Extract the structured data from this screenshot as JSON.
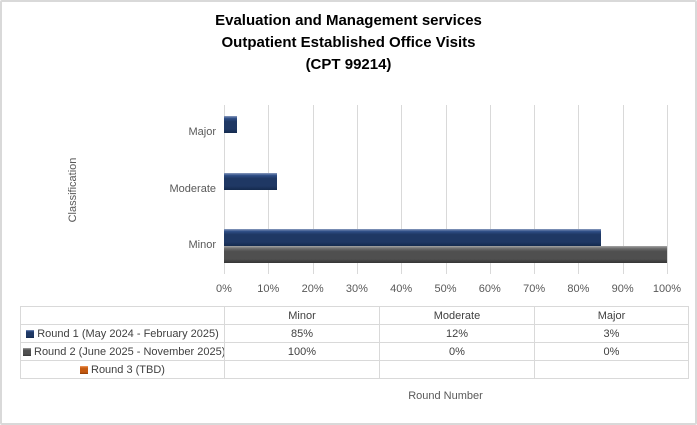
{
  "window": {
    "background": "#FFFFFF",
    "border_color": "#D9D9D9",
    "grid_color": "#D9D9D9"
  },
  "title": {
    "line1": "Evaluation and Management services",
    "line2": "Outpatient Established Office Visits",
    "line3": "(CPT 99214)"
  },
  "axes": {
    "y_title": "Classification",
    "x_title": "Round Number",
    "x_ticks": [
      "0%",
      "10%",
      "20%",
      "30%",
      "40%",
      "50%",
      "60%",
      "70%",
      "80%",
      "90%",
      "100%"
    ],
    "categories_top_to_bottom": [
      "Major",
      "Moderate",
      "Minor"
    ]
  },
  "chart_data": {
    "type": "bar",
    "orientation": "horizontal",
    "title": "Evaluation and Management services Outpatient Established Office Visits (CPT 99214)",
    "xlabel": "Round Number",
    "ylabel": "Classification",
    "xlim": [
      0,
      100
    ],
    "x_tick_step_percent": 10,
    "grid": true,
    "legend_position": "bottom-table",
    "categories": [
      "Minor",
      "Moderate",
      "Major"
    ],
    "series": [
      {
        "name": "Round 1 (May 2024 - February 2025)",
        "color": "#1F3864",
        "color_light": "#8A9CBE",
        "color_mid": "#2F4E87",
        "color_dark": "#142A4E",
        "values": {
          "Minor": 85,
          "Moderate": 12,
          "Major": 3
        }
      },
      {
        "name": "Round 2 (June 2025 - November 2025)",
        "color": "#4F4F4F",
        "color_light": "#A6A6A6",
        "color_mid": "#6E6E6E",
        "color_dark": "#353535",
        "values": {
          "Minor": 100,
          "Moderate": 0,
          "Major": 0
        }
      },
      {
        "name": "Round 3 (TBD)",
        "color": "#C55A11",
        "color_light": "#F0A268",
        "color_mid": "#D9732E",
        "color_dark": "#8F3E08",
        "values": {}
      }
    ],
    "value_suffix": "%"
  },
  "table": {
    "col_headers": [
      "Minor",
      "Moderate",
      "Major"
    ],
    "rows": [
      {
        "label": "Round 1 (May 2024 - February 2025)",
        "cells": [
          "85%",
          "12%",
          "3%"
        ]
      },
      {
        "label": "Round 2 (June 2025 - November 2025)",
        "cells": [
          "100%",
          "0%",
          "0%"
        ]
      },
      {
        "label": "Round 3 (TBD)",
        "cells": [
          "",
          "",
          ""
        ]
      }
    ]
  }
}
